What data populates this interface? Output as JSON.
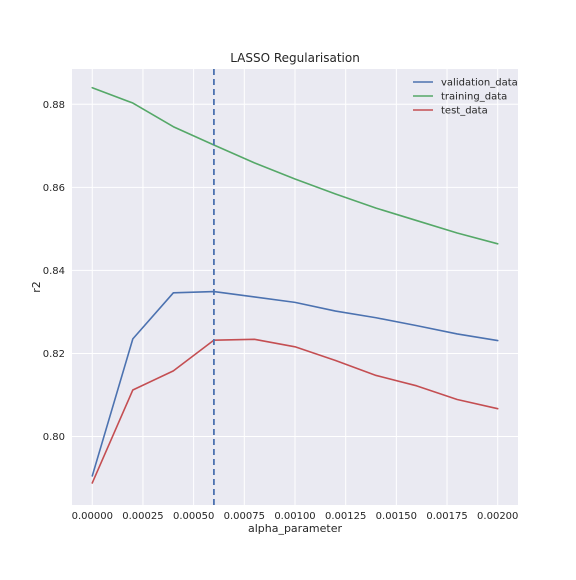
{
  "chart_data": {
    "type": "line",
    "title": "LASSO Regularisation",
    "xlabel": "alpha_parameter",
    "ylabel": "r2",
    "x": [
      0.0,
      0.0002,
      0.0004,
      0.0006,
      0.0008,
      0.001,
      0.0012,
      0.0014,
      0.0016,
      0.0018,
      0.002
    ],
    "xlim": [
      -0.0001,
      0.0021
    ],
    "ylim": [
      0.7835,
      0.8885
    ],
    "xticks": [
      0.0,
      0.00025,
      0.0005,
      0.00075,
      0.001,
      0.00125,
      0.0015,
      0.00175,
      0.002
    ],
    "xtick_labels": [
      "0.00000",
      "0.00025",
      "0.00050",
      "0.00075",
      "0.00100",
      "0.00125",
      "0.00150",
      "0.00175",
      "0.00200"
    ],
    "yticks": [
      0.8,
      0.82,
      0.84,
      0.86,
      0.88
    ],
    "ytick_labels": [
      "0.80",
      "0.82",
      "0.84",
      "0.86",
      "0.88"
    ],
    "grid": true,
    "legend_position": "top-right",
    "series": [
      {
        "name": "validation_data",
        "color": "#4c72b0",
        "values": [
          0.7905,
          0.8235,
          0.8346,
          0.8349,
          0.8336,
          0.8323,
          0.8302,
          0.8286,
          0.8267,
          0.8247,
          0.8231
        ]
      },
      {
        "name": "training_data",
        "color": "#55a868",
        "values": [
          0.884,
          0.8803,
          0.8746,
          0.8702,
          0.8659,
          0.862,
          0.8584,
          0.855,
          0.852,
          0.849,
          0.8464
        ]
      },
      {
        "name": "test_data",
        "color": "#c44e52",
        "values": [
          0.7888,
          0.8112,
          0.8158,
          0.8232,
          0.8234,
          0.8216,
          0.8183,
          0.8147,
          0.8122,
          0.8089,
          0.8067
        ]
      }
    ],
    "vline": {
      "x": 0.0006,
      "color": "#4c72b0",
      "style": "dashed"
    },
    "background_color": "#eaeaf2",
    "grid_color": "#ffffff"
  }
}
